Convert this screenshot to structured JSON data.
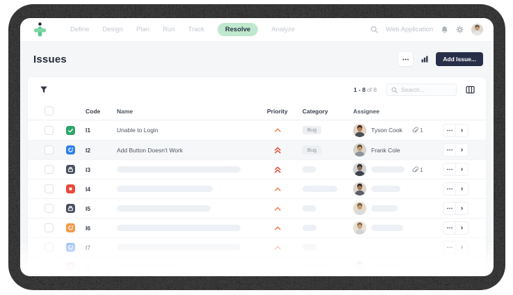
{
  "nav": {
    "tabs": [
      {
        "label": "Define",
        "active": false
      },
      {
        "label": "Design",
        "active": false
      },
      {
        "label": "Plan",
        "active": false
      },
      {
        "label": "Run",
        "active": false
      },
      {
        "label": "Track",
        "active": false
      },
      {
        "label": "Resolve",
        "active": true
      },
      {
        "label": "Analyze",
        "active": false
      }
    ],
    "project_label": "Web Application"
  },
  "page": {
    "title": "Issues",
    "add_issue_label": "Add Issue..."
  },
  "toolbar": {
    "pagination_range": "1 - 8",
    "pagination_of": "of 8",
    "search_placeholder": "Search..."
  },
  "table": {
    "columns": [
      "Code",
      "Name",
      "Priority",
      "Category",
      "Assignee"
    ],
    "rows": [
      {
        "code": "I1",
        "type_icon": "check-icon",
        "type_color": "#2BA666",
        "name": "Unable to Login",
        "priority": "medium",
        "category": "Bug",
        "assignee": "Tyson Cook",
        "show_avatar": true,
        "attachments": "1",
        "highlighted": false
      },
      {
        "code": "I2",
        "type_icon": "refresh-icon",
        "type_color": "#2F80ED",
        "name": "Add Button Doesn't Work",
        "priority": "high",
        "category": "Bug",
        "assignee": "Frank Cole",
        "show_avatar": true,
        "attachments": null,
        "highlighted": true
      },
      {
        "code": "I3",
        "type_icon": "archive-icon",
        "type_color": "#49505E",
        "name": null,
        "priority": "high",
        "category": null,
        "assignee": null,
        "show_avatar": true,
        "attachments": "1",
        "highlighted": false
      },
      {
        "code": "I4",
        "type_icon": "stop-icon",
        "type_color": "#E64A3B",
        "name": null,
        "priority": "medium",
        "category": null,
        "assignee": null,
        "show_avatar": true,
        "attachments": null,
        "highlighted": false
      },
      {
        "code": "I5",
        "type_icon": "archive-icon",
        "type_color": "#49505E",
        "name": null,
        "priority": "medium",
        "category": null,
        "assignee": null,
        "show_avatar": true,
        "attachments": null,
        "highlighted": false
      },
      {
        "code": "I6",
        "type_icon": "refresh-icon",
        "type_color": "#F2994A",
        "name": null,
        "priority": "medium",
        "category": null,
        "assignee": null,
        "show_avatar": true,
        "attachments": null,
        "highlighted": false
      },
      {
        "code": "I7",
        "type_icon": "refresh-icon",
        "type_color": "#4D90EE",
        "name": null,
        "priority": "medium",
        "category": null,
        "assignee": null,
        "show_avatar": false,
        "attachments": null,
        "highlighted": false
      },
      {
        "code": "I8",
        "type_icon": "stop-icon",
        "type_color": "#E64A3B",
        "name": null,
        "priority": "low",
        "category": null,
        "assignee": null,
        "show_avatar": true,
        "attachments": null,
        "highlighted": false
      }
    ]
  },
  "colors": {
    "brand_green": "#6FCF97",
    "active_tab_bg": "#BFE8CE",
    "add_button_bg": "#272F49",
    "priority_medium": "#EE8A5F",
    "priority_high": "#E2574C",
    "skeleton": "#EDF0F4",
    "frame": "#3D3D3D"
  }
}
